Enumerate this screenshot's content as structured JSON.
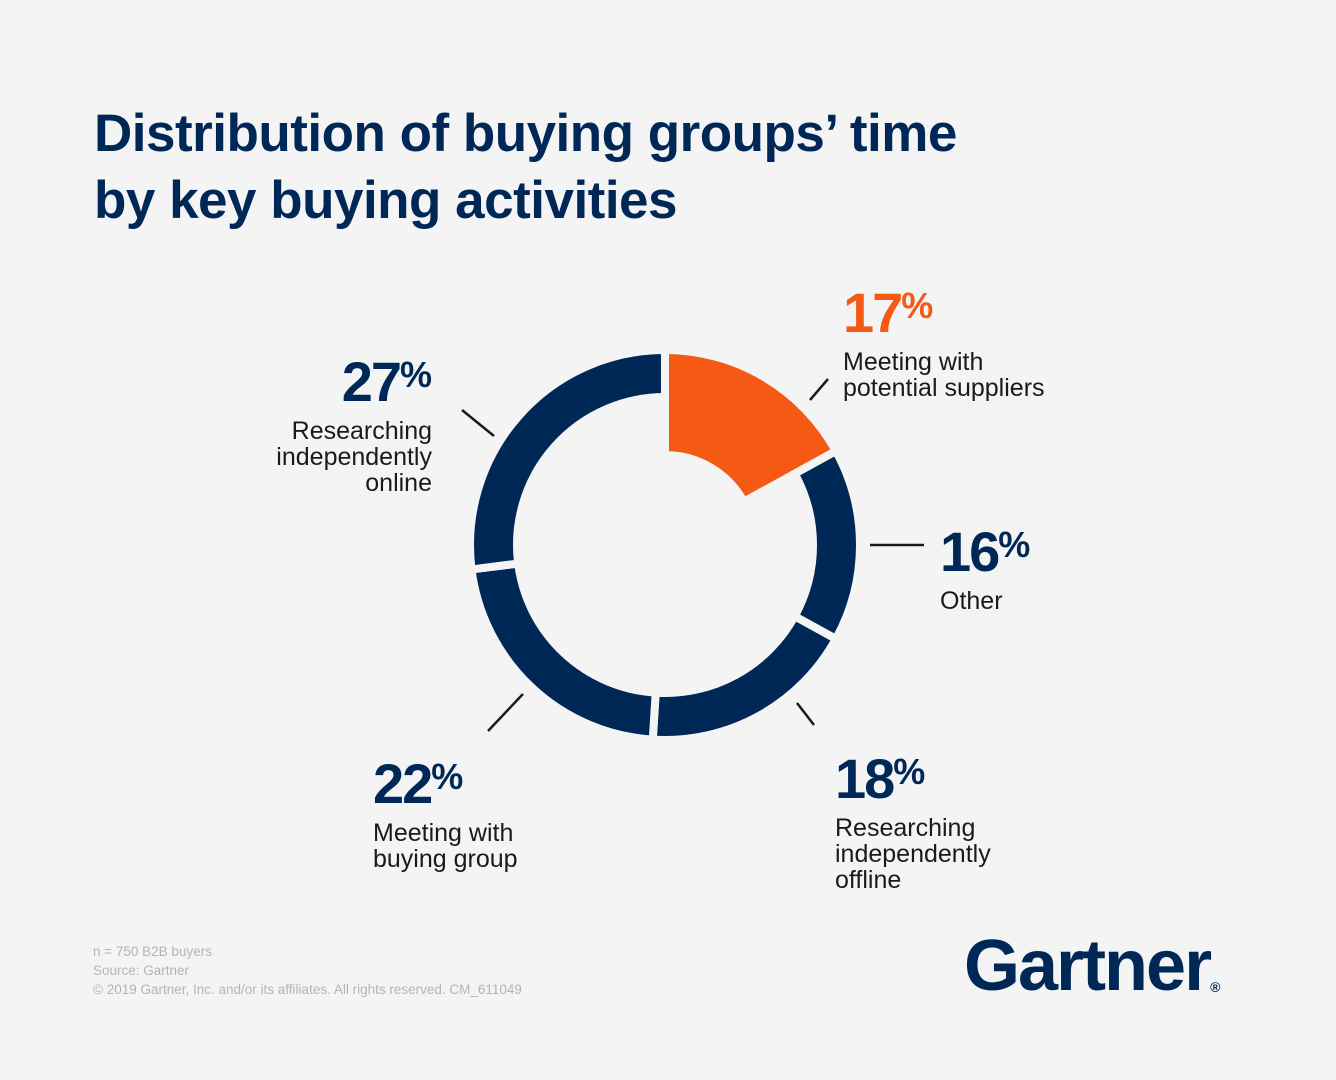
{
  "title": {
    "line1": "Distribution of buying groups’ time",
    "line2": "by key buying activities"
  },
  "chart_data": {
    "type": "pie",
    "title": "Distribution of buying groups’ time by key buying activities",
    "subtype": "donut",
    "segments": [
      {
        "label": "Meeting with potential suppliers",
        "value": 17,
        "value_label": "17",
        "desc_lines": [
          "Meeting with",
          "potential suppliers"
        ],
        "color": "#f55a14"
      },
      {
        "label": "Other",
        "value": 16,
        "value_label": "16",
        "desc_lines": [
          "Other"
        ],
        "color": "#002856"
      },
      {
        "label": "Researching independently offline",
        "value": 18,
        "value_label": "18",
        "desc_lines": [
          "Researching",
          "independently",
          "offline"
        ],
        "color": "#002856"
      },
      {
        "label": "Meeting with buying group",
        "value": 22,
        "value_label": "22",
        "desc_lines": [
          "Meeting with",
          "buying group"
        ],
        "color": "#002856"
      },
      {
        "label": "Researching independently online",
        "value": 27,
        "value_label": "27",
        "desc_lines": [
          "Researching",
          "independently",
          "online"
        ],
        "color": "#002856"
      }
    ],
    "percent_sign": "%",
    "start": "12 o'clock",
    "direction": "clockwise"
  },
  "footnote": {
    "line1": "n = 750 B2B buyers",
    "line2": "Source: Gartner",
    "line3": "© 2019 Gartner, Inc. and/or its affiliates. All rights reserved. CM_611049"
  },
  "logo": {
    "text": "Gartner",
    "mark": "®"
  },
  "colors": {
    "navy": "#002856",
    "orange": "#f55a14",
    "background": "#f4f4f5",
    "separator": "#f4f4f5"
  }
}
